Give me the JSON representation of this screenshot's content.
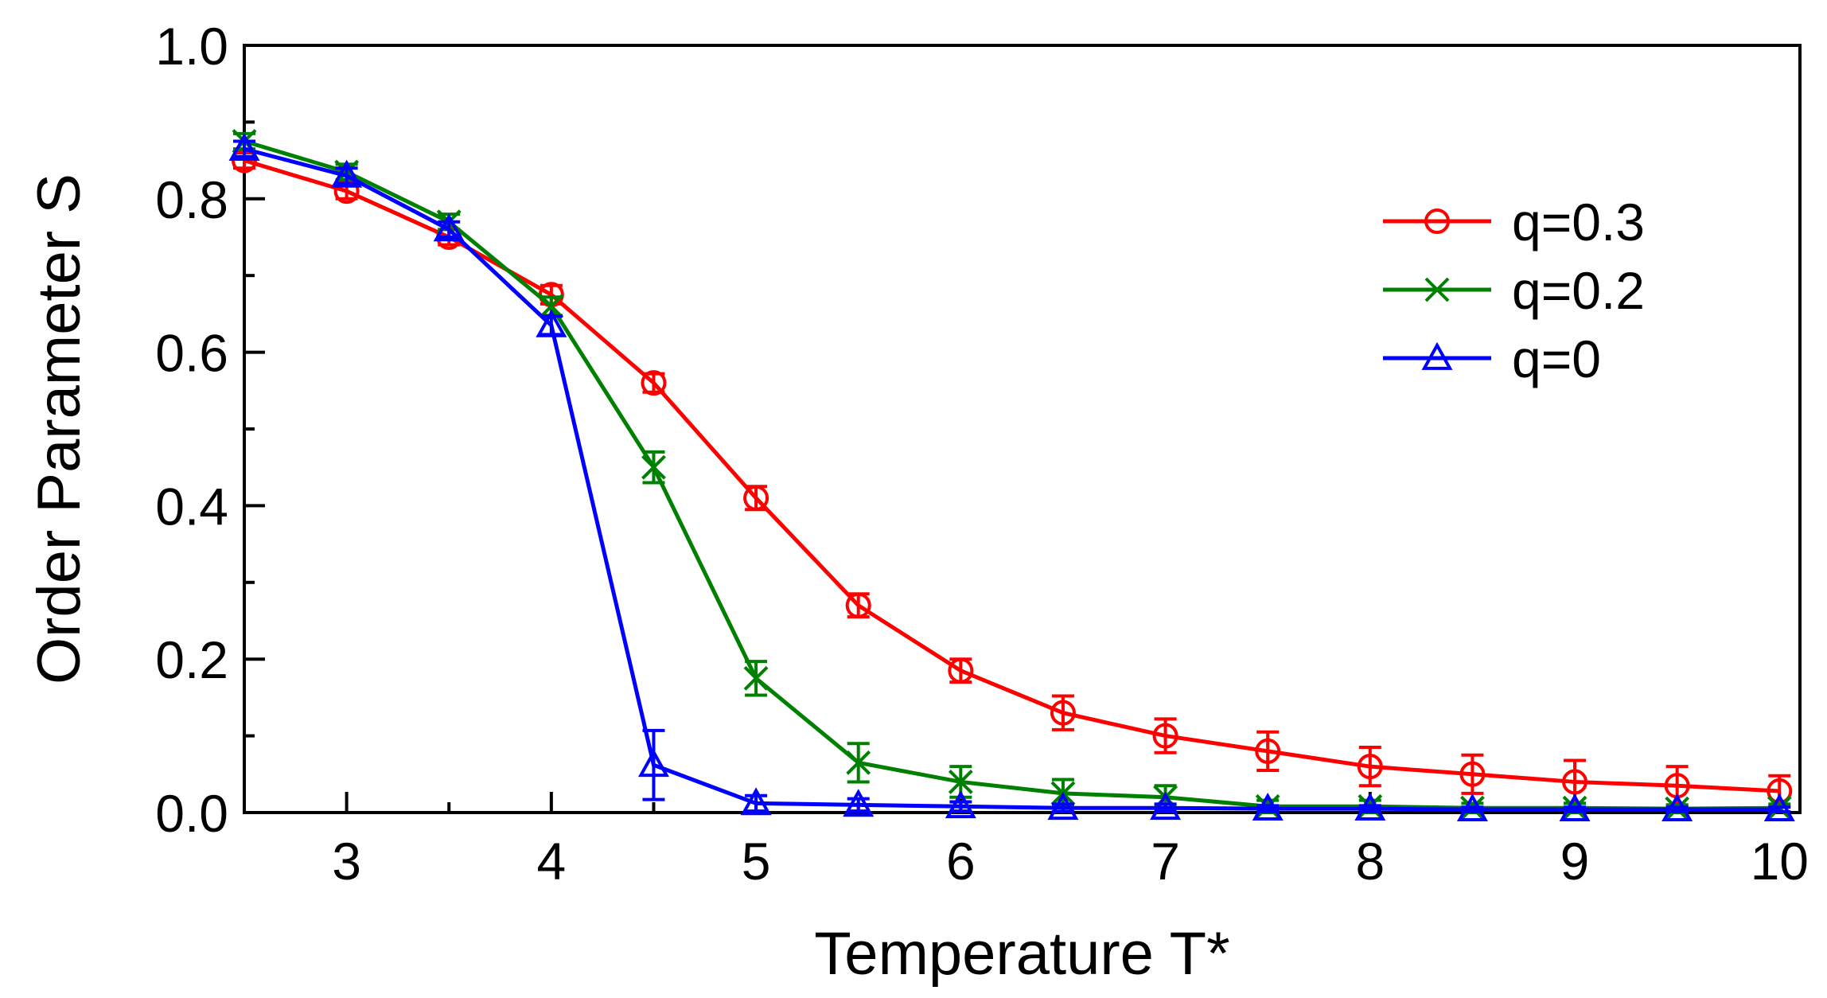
{
  "chart_data": {
    "type": "line",
    "xlabel": "Temperature T*",
    "ylabel": "Order Parameter S",
    "xlim": [
      2.5,
      10.1
    ],
    "ylim": [
      0.0,
      1.0
    ],
    "x_ticks": [
      3,
      4,
      5,
      6,
      7,
      8,
      9,
      10
    ],
    "x_tick_labels": [
      "3",
      "4",
      "5",
      "6",
      "7",
      "8",
      "9",
      "10"
    ],
    "y_ticks": [
      0.0,
      0.2,
      0.4,
      0.6,
      0.8,
      1.0
    ],
    "y_tick_labels": [
      "0.0",
      "0.2",
      "0.4",
      "0.6",
      "0.8",
      "1.0"
    ],
    "legend_position": "top-right",
    "grid": false,
    "series": [
      {
        "name": "q=0.3",
        "color": "#ff0000",
        "marker": "circle",
        "x": [
          2.5,
          3.0,
          3.5,
          4.0,
          4.5,
          5.0,
          5.5,
          6.0,
          6.5,
          7.0,
          7.5,
          8.0,
          8.5,
          9.0,
          9.5,
          10.0
        ],
        "y": [
          0.85,
          0.81,
          0.75,
          0.675,
          0.56,
          0.41,
          0.27,
          0.185,
          0.13,
          0.1,
          0.08,
          0.06,
          0.05,
          0.04,
          0.035,
          0.028
        ],
        "err": [
          0.01,
          0.01,
          0.01,
          0.012,
          0.012,
          0.015,
          0.015,
          0.015,
          0.022,
          0.022,
          0.025,
          0.025,
          0.025,
          0.028,
          0.025,
          0.02
        ]
      },
      {
        "name": "q=0.2",
        "color": "#008000",
        "marker": "x",
        "x": [
          2.5,
          3.0,
          3.5,
          4.0,
          4.5,
          5.0,
          5.5,
          6.0,
          6.5,
          7.0,
          7.5,
          8.0,
          8.5,
          9.0,
          9.5,
          10.0
        ],
        "y": [
          0.875,
          0.835,
          0.77,
          0.66,
          0.45,
          0.175,
          0.065,
          0.04,
          0.025,
          0.02,
          0.008,
          0.008,
          0.006,
          0.006,
          0.005,
          0.006
        ],
        "err": [
          0.01,
          0.01,
          0.01,
          0.012,
          0.02,
          0.022,
          0.025,
          0.02,
          0.018,
          0.015,
          0.008,
          0.008,
          0.006,
          0.006,
          0.005,
          0.005
        ]
      },
      {
        "name": "q=0",
        "color": "#0000ff",
        "marker": "triangle",
        "x": [
          2.5,
          3.0,
          3.5,
          4.0,
          4.5,
          5.0,
          5.5,
          6.0,
          6.5,
          7.0,
          7.5,
          8.0,
          8.5,
          9.0,
          9.5,
          10.0
        ],
        "y": [
          0.865,
          0.83,
          0.76,
          0.635,
          0.062,
          0.012,
          0.01,
          0.008,
          0.006,
          0.006,
          0.005,
          0.005,
          0.004,
          0.004,
          0.004,
          0.004
        ],
        "err": [
          0.01,
          0.01,
          0.01,
          0.012,
          0.045,
          0.01,
          0.008,
          0.006,
          0.005,
          0.005,
          0.004,
          0.004,
          0.003,
          0.003,
          0.003,
          0.003
        ]
      }
    ]
  }
}
